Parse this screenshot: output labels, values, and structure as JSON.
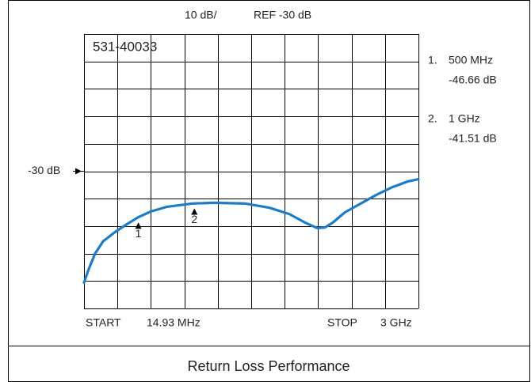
{
  "chart_data": {
    "type": "line",
    "title": "531-40033",
    "scale_label": "10 dB/",
    "reference_label": "REF -30 dB",
    "caption": "Return Loss Performance",
    "start_label": "START",
    "stop_label": "STOP",
    "xlim": [
      14.93,
      3000
    ],
    "ylim": [
      -80,
      20
    ],
    "x_divisions": 10,
    "y_divisions": 10,
    "xticks": [
      {
        "value": 14.93,
        "label": "14.93 MHz"
      },
      {
        "value": 3000,
        "label": "3 GHz"
      }
    ],
    "yticks": [
      {
        "value": -30,
        "label": "-30 dB"
      }
    ],
    "series": [
      {
        "color": "#1f7bc4",
        "x": [
          14.93,
          57,
          114,
          185,
          291,
          397,
          503,
          609,
          751,
          977,
          1175,
          1458,
          1670,
          1847,
          1988,
          2095,
          2165,
          2236,
          2342,
          2484,
          2625,
          2767,
          2908,
          3000
        ],
        "values": [
          -70.6,
          -65.7,
          -60,
          -55.6,
          -52.2,
          -49.3,
          -46.7,
          -44.7,
          -43,
          -41.8,
          -41.5,
          -41.8,
          -43.3,
          -45.6,
          -48.7,
          -50.7,
          -50.5,
          -48.7,
          -45,
          -41.8,
          -38.6,
          -35.8,
          -33.7,
          -32.9
        ]
      }
    ],
    "markers": [
      {
        "label": "1",
        "list_label": "1.",
        "x": 500,
        "x_label": "500 MHz",
        "value": -46.66,
        "value_label": "-46.66 dB"
      },
      {
        "label": "2",
        "list_label": "2.",
        "x": 1000,
        "x_label": "1 GHz",
        "value": -41.51,
        "value_label": "-41.51 dB"
      }
    ]
  }
}
